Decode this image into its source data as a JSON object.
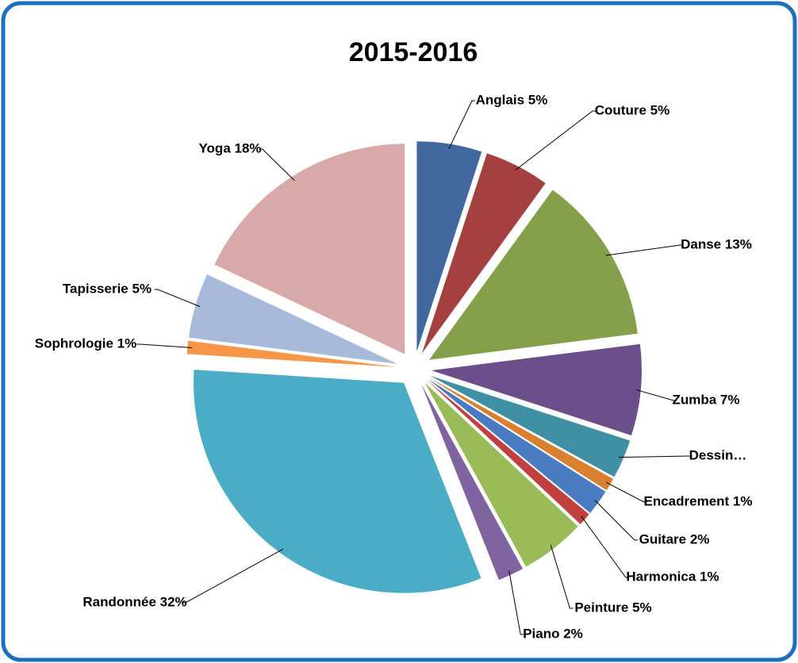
{
  "chart_data": {
    "type": "pie",
    "title": "2015-2016",
    "values": [
      5,
      5,
      13,
      7,
      3,
      1,
      2,
      1,
      5,
      2,
      32,
      1,
      5,
      18
    ],
    "value_labels": [
      "Anglais 5%",
      "Couture 5%",
      "Danse 13%",
      "Zumba 7%",
      "Dessin…",
      "Encadrement 1%",
      "Guitare 2%",
      "Harmonica 1%",
      "Peinture 5%",
      "Piano 2%",
      "Randonnée 32%",
      "Sophrologie 1%",
      "Tapisserie 5%",
      "Yoga 18%"
    ],
    "colors": [
      "#4169a0",
      "#a54040",
      "#85a04a",
      "#6b4f8a",
      "#3f8fa5",
      "#d98030",
      "#4a7ac0",
      "#c04040",
      "#9abc58",
      "#8064a2",
      "#4bacc6",
      "#f79646",
      "#a9b9d9",
      "#d9a9a9"
    ]
  }
}
